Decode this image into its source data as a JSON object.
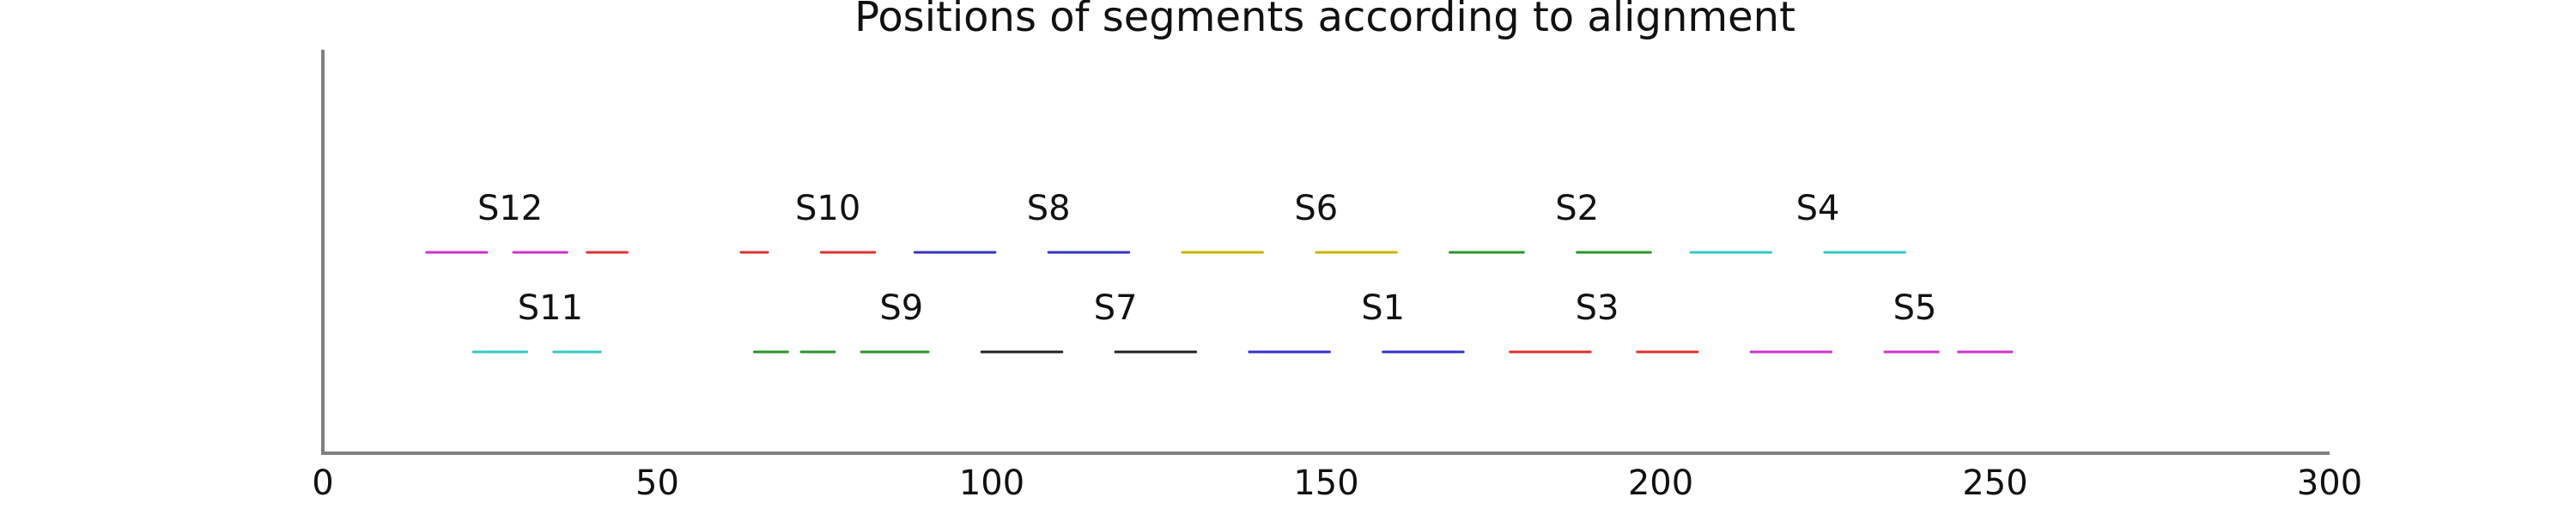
{
  "chart_data": {
    "type": "segments",
    "title": "Positions of segments according to alignment",
    "xlabel": "",
    "ylabel": "",
    "xlim": [
      0,
      300
    ],
    "x_ticks": [
      0,
      50,
      100,
      150,
      200,
      250,
      300
    ],
    "grid": false,
    "rows": [
      {
        "row": "top",
        "groups": [
          {
            "label": "S12",
            "label_x": 28,
            "segments": [
              [
                15.5,
                24.5,
                "#cc33cc"
              ],
              [
                28.5,
                36.5,
                "#cc33cc"
              ],
              [
                39.5,
                45.5,
                "#e03030"
              ]
            ]
          },
          {
            "label": "S10",
            "label_x": 75.5,
            "segments": [
              [
                62.5,
                66.5,
                "#e03030"
              ],
              [
                74.5,
                82.5,
                "#e03030"
              ],
              [
                88.5,
                100.5,
                "#3333cc"
              ]
            ]
          },
          {
            "label": "S8",
            "label_x": 108.5,
            "segments": [
              [
                108.5,
                120.5,
                "#3333cc"
              ]
            ]
          },
          {
            "label": "S6",
            "label_x": 148.5,
            "segments": [
              [
                128.5,
                140.5,
                "#c8b400"
              ],
              [
                148.5,
                160.5,
                "#c8b400"
              ]
            ]
          },
          {
            "label": "S2",
            "label_x": 187.5,
            "segments": [
              [
                168.5,
                179.5,
                "#2a962a"
              ],
              [
                187.5,
                198.5,
                "#2a962a"
              ]
            ]
          },
          {
            "label": "S4",
            "label_x": 223.5,
            "segments": [
              [
                204.5,
                216.5,
                "#33c8c8"
              ],
              [
                224.5,
                236.5,
                "#33c8c8"
              ]
            ]
          }
        ]
      },
      {
        "row": "bottom",
        "groups": [
          {
            "label": "S11",
            "label_x": 34,
            "segments": [
              [
                22.5,
                30.5,
                "#33c8c8"
              ],
              [
                34.5,
                41.5,
                "#33c8c8"
              ]
            ]
          },
          {
            "label": "S9",
            "label_x": 86.5,
            "segments": [
              [
                64.5,
                69.5,
                "#2a962a"
              ],
              [
                71.5,
                76.5,
                "#2a962a"
              ],
              [
                80.5,
                90.5,
                "#2a962a"
              ]
            ]
          },
          {
            "label": "S7",
            "label_x": 118.5,
            "segments": [
              [
                98.5,
                110.5,
                "#222222"
              ],
              [
                118.5,
                130.5,
                "#222222"
              ]
            ]
          },
          {
            "label": "S1",
            "label_x": 158.5,
            "segments": [
              [
                138.5,
                150.5,
                "#3333cc"
              ],
              [
                158.5,
                170.5,
                "#3333cc"
              ]
            ]
          },
          {
            "label": "S3",
            "label_x": 190.5,
            "segments": [
              [
                177.5,
                189.5,
                "#e03030"
              ],
              [
                196.5,
                205.5,
                "#e03030"
              ]
            ]
          },
          {
            "label": "S5",
            "label_x": 238,
            "segments": [
              [
                213.5,
                225.5,
                "#cc33cc"
              ],
              [
                233.5,
                241.5,
                "#cc33cc"
              ],
              [
                244.5,
                252.5,
                "#cc33cc"
              ]
            ]
          }
        ]
      }
    ]
  }
}
